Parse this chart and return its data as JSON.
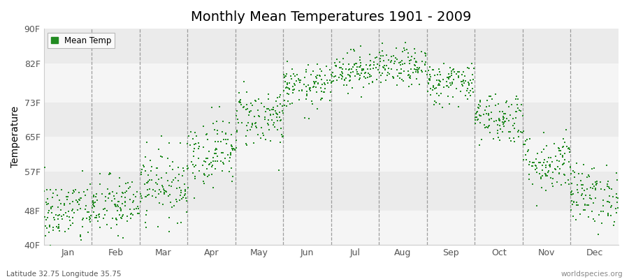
{
  "title": "Monthly Mean Temperatures 1901 - 2009",
  "ylabel": "Temperature",
  "bottom_left": "Latitude 32.75 Longitude 35.75",
  "bottom_right": "worldspecies.org",
  "legend_label": "Mean Temp",
  "yticks": [
    40,
    48,
    57,
    65,
    73,
    82,
    90
  ],
  "ytick_labels": [
    "40F",
    "48F",
    "57F",
    "65F",
    "73F",
    "82F",
    "90F"
  ],
  "ylim": [
    40,
    90
  ],
  "months": [
    "Jan",
    "Feb",
    "Mar",
    "Apr",
    "May",
    "Jun",
    "Jul",
    "Aug",
    "Sep",
    "Oct",
    "Nov",
    "Dec"
  ],
  "monthly_means": [
    47.5,
    49.0,
    54.0,
    61.5,
    69.5,
    76.5,
    80.5,
    81.0,
    77.5,
    69.5,
    59.0,
    51.5
  ],
  "monthly_stds": [
    3.8,
    3.5,
    4.0,
    4.0,
    3.5,
    2.5,
    2.2,
    2.2,
    2.5,
    3.0,
    3.5,
    3.5
  ],
  "n_years": 109,
  "dot_color": "#228B22",
  "dot_size": 3,
  "background_color": "#ffffff",
  "band_colors": [
    "#f5f5f5",
    "#ebebeb"
  ],
  "title_fontsize": 14,
  "axis_fontsize": 10,
  "tick_fontsize": 9,
  "seed": 42
}
